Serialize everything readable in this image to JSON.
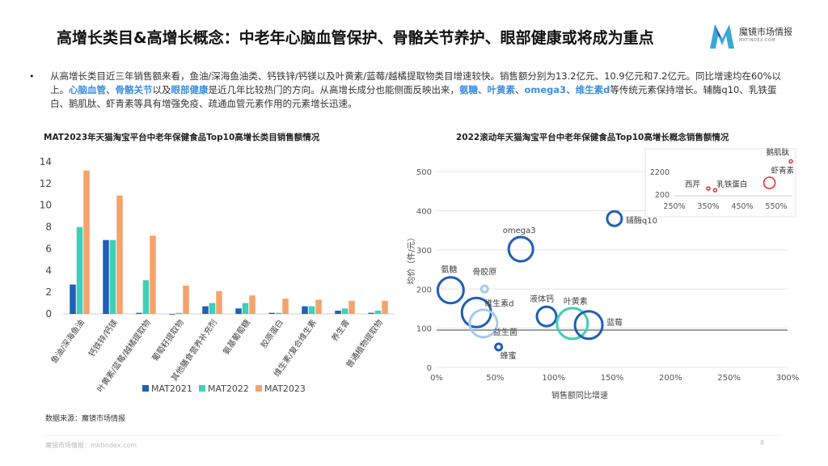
{
  "page": {
    "title": "高增长类目&高增长概念：中老年心脑血管保护、骨骼关节养护、眼部健康或将成为重点",
    "logo_name": "魔镜市场情报",
    "logo_url": "MKTINDEX.COM",
    "paragraph": [
      {
        "t": "从高增长类目近三年销售额来看，鱼油/深海鱼油类、钙铁锌/钙镁以及叶黄素/蓝莓/越橘提取物类目增速较快。销售额分别为13.2亿元、10.9亿元和7.2亿元。同比增速均在60%以上。"
      },
      {
        "t": "心脑血管",
        "hl": true
      },
      {
        "t": "、"
      },
      {
        "t": "骨骼关节",
        "hl": true
      },
      {
        "t": "以及"
      },
      {
        "t": "眼部健康",
        "hl": true
      },
      {
        "t": "是近几年比较热门的方向。从高增长成分也能侧面反映出来，"
      },
      {
        "t": "氨糖",
        "hl": true
      },
      {
        "t": "、"
      },
      {
        "t": "叶黄素",
        "hl": true
      },
      {
        "t": "、"
      },
      {
        "t": "omega3",
        "hl": true
      },
      {
        "t": "、"
      },
      {
        "t": "维生素d",
        "hl": true
      },
      {
        "t": "等传统元素保持增长。辅酶q10、乳铁蛋白、鹅肌肽、虾青素等具有增强免疫、疏通血管元素作用的元素增长迅速。"
      }
    ],
    "source": "数据来源：魔镜市场情报",
    "footer": "魔镜市场情报：mktindex.com",
    "page_number": "8"
  },
  "colors": {
    "mat2021": "#1f5fb5",
    "mat2022": "#3ecfb8",
    "mat2023": "#f5a26b",
    "bubble_blue": "#1f5fb5",
    "bubble_teal": "#3ecfb8",
    "bubble_light": "#a9c8ec",
    "inset_red": "#e03030",
    "highlight": "#3d8fe0"
  },
  "chart_data": [
    {
      "type": "bar",
      "title": "MAT2023年天猫淘宝平台中老年保健食品Top10高增长类目销售额情况",
      "categories": [
        "鱼油/深海鱼油",
        "钙铁锌/钙镁",
        "叶黄素/蓝莓/越橘提取物",
        "葡萄籽提取物",
        "其他膳食营养补充剂",
        "氨基葡萄糖",
        "胶原蛋白",
        "维生素/复合维生素",
        "养生膏",
        "普通植物提取物"
      ],
      "series": [
        {
          "name": "MAT2021",
          "values": [
            2.7,
            6.8,
            0.1,
            0.0,
            0.7,
            0.5,
            0.1,
            0.7,
            0.3,
            0.1
          ]
        },
        {
          "name": "MAT2022",
          "values": [
            8.0,
            6.8,
            3.1,
            0.1,
            1.0,
            1.0,
            0.1,
            0.7,
            0.5,
            0.3
          ]
        },
        {
          "name": "MAT2023",
          "values": [
            13.2,
            10.9,
            7.2,
            2.6,
            2.1,
            1.7,
            1.4,
            1.3,
            1.2,
            1.2
          ]
        }
      ],
      "ylim": [
        0,
        14
      ],
      "yticks": [
        "0",
        "2",
        "4",
        "6",
        "8",
        "10",
        "12",
        "14"
      ],
      "legend": "bottom"
    },
    {
      "type": "scatter",
      "title": "2022滚动年天猫淘宝平台中老年保健食品Top10高增长概念销售额情况",
      "xlabel": "销售额同比增速",
      "ylabel": "均价（件/元）",
      "xlim": [
        0,
        3.0
      ],
      "ylim": [
        0,
        550
      ],
      "xticks": [
        "0%",
        "50%",
        "100%",
        "150%",
        "200%",
        "250%",
        "300%"
      ],
      "yticks": [
        "0",
        "100",
        "200",
        "300",
        "400",
        "500"
      ],
      "points": [
        {
          "label": "辅酶q10",
          "x": 1.52,
          "y": 380,
          "style": "blue"
        },
        {
          "label": "omega3",
          "x": 0.72,
          "y": 302,
          "style": "blue"
        },
        {
          "label": "氨糖",
          "x": 0.12,
          "y": 197,
          "style": "blue"
        },
        {
          "label": "骨胶原",
          "x": 0.41,
          "y": 200,
          "style": "light"
        },
        {
          "label": "维生素d",
          "x": 0.34,
          "y": 140,
          "style": "blue"
        },
        {
          "label": "益生菌",
          "x": 0.4,
          "y": 112,
          "style": "light"
        },
        {
          "label": "液体钙",
          "x": 0.94,
          "y": 130,
          "style": "blue"
        },
        {
          "label": "叶黄素",
          "x": 1.16,
          "y": 112,
          "style": "teal"
        },
        {
          "label": "蓝莓",
          "x": 1.3,
          "y": 108,
          "style": "blue"
        },
        {
          "label": "蜂蜜",
          "x": 0.53,
          "y": 52,
          "style": "blue"
        }
      ],
      "inset": {
        "xticks": [
          "250%",
          "350%",
          "450%",
          "550%"
        ],
        "yticks": [
          "200",
          "2200"
        ],
        "points": [
          {
            "label": "鹅肌肽",
            "x": 6.1,
            "y": 3100
          },
          {
            "label": "虾青素",
            "x": 5.3,
            "y": 1200
          },
          {
            "label": "乳铁蛋白",
            "x": 3.7,
            "y": 550
          },
          {
            "label": "西芹",
            "x": 3.5,
            "y": 700
          }
        ]
      }
    }
  ]
}
